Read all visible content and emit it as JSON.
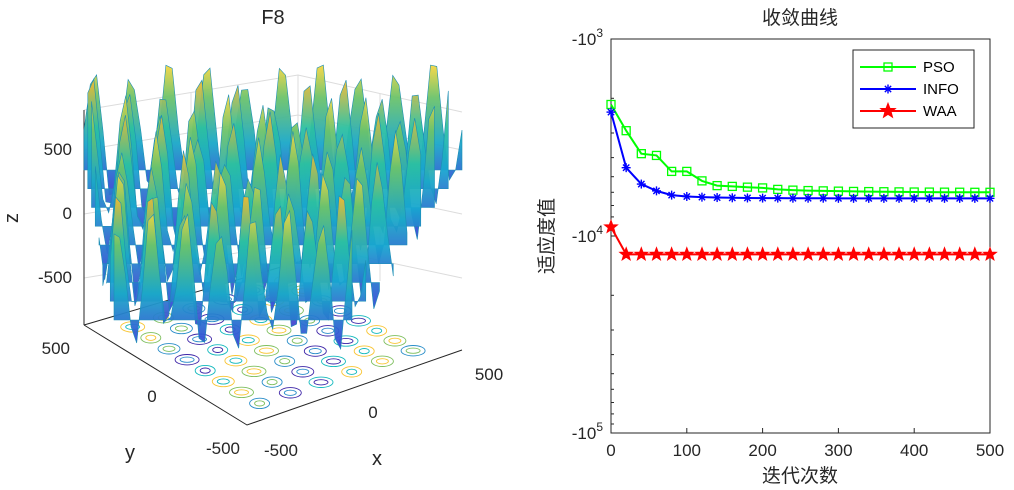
{
  "chart_data": [
    {
      "type": "surface3d",
      "title": "F8",
      "xlabel": "x",
      "ylabel": "y",
      "zlabel": "z",
      "x_ticks": [
        "-500",
        "0",
        "500"
      ],
      "y_ticks": [
        "500",
        "0",
        "-500"
      ],
      "z_ticks": [
        "500",
        "0",
        "-500"
      ],
      "xlim": [
        -500,
        500
      ],
      "ylim": [
        -500,
        500
      ],
      "zlim": [
        -800,
        800
      ],
      "colormap": "parula",
      "colors": {
        "low": "#3e26a8",
        "mid": "#14b9be",
        "high": "#f8c534"
      }
    },
    {
      "type": "line",
      "title": "收敛曲线",
      "xlabel": "迭代次数",
      "ylabel": "适应度值",
      "yscale": "log-negative",
      "y_ticks": [
        {
          "base": "-10",
          "exp": "3"
        },
        {
          "base": "-10",
          "exp": "4"
        },
        {
          "base": "-10",
          "exp": "5"
        }
      ],
      "x_ticks": [
        "0",
        "100",
        "200",
        "300",
        "400",
        "500"
      ],
      "xlim": [
        0,
        500
      ],
      "ylim": [
        -100000,
        -1000
      ],
      "legend_position": "top-right",
      "x": [
        0,
        20,
        40,
        60,
        80,
        100,
        120,
        140,
        160,
        180,
        200,
        220,
        240,
        260,
        280,
        300,
        320,
        340,
        360,
        380,
        400,
        420,
        440,
        460,
        480,
        500
      ],
      "series": [
        {
          "name": "PSO",
          "color": "#00ff00",
          "marker": "square",
          "values": [
            -2150,
            -2920,
            -3820,
            -3900,
            -4700,
            -4700,
            -5250,
            -5550,
            -5600,
            -5650,
            -5700,
            -5800,
            -5850,
            -5880,
            -5900,
            -5920,
            -5940,
            -5950,
            -5960,
            -5970,
            -5980,
            -5985,
            -5990,
            -5995,
            -6000,
            -6000
          ]
        },
        {
          "name": "INFO",
          "color": "#0000ff",
          "marker": "asterisk",
          "values": [
            -2350,
            -4500,
            -5450,
            -5900,
            -6200,
            -6300,
            -6350,
            -6380,
            -6400,
            -6410,
            -6420,
            -6420,
            -6430,
            -6430,
            -6430,
            -6440,
            -6440,
            -6440,
            -6440,
            -6440,
            -6440,
            -6440,
            -6440,
            -6440,
            -6440,
            -6440
          ]
        },
        {
          "name": "WAA",
          "color": "#ff0000",
          "marker": "pentagram",
          "values": [
            -9000,
            -12400,
            -12400,
            -12400,
            -12400,
            -12400,
            -12400,
            -12400,
            -12400,
            -12400,
            -12400,
            -12400,
            -12400,
            -12400,
            -12400,
            -12400,
            -12400,
            -12400,
            -12400,
            -12400,
            -12400,
            -12400,
            -12400,
            -12400,
            -12400,
            -12400
          ]
        }
      ]
    }
  ]
}
